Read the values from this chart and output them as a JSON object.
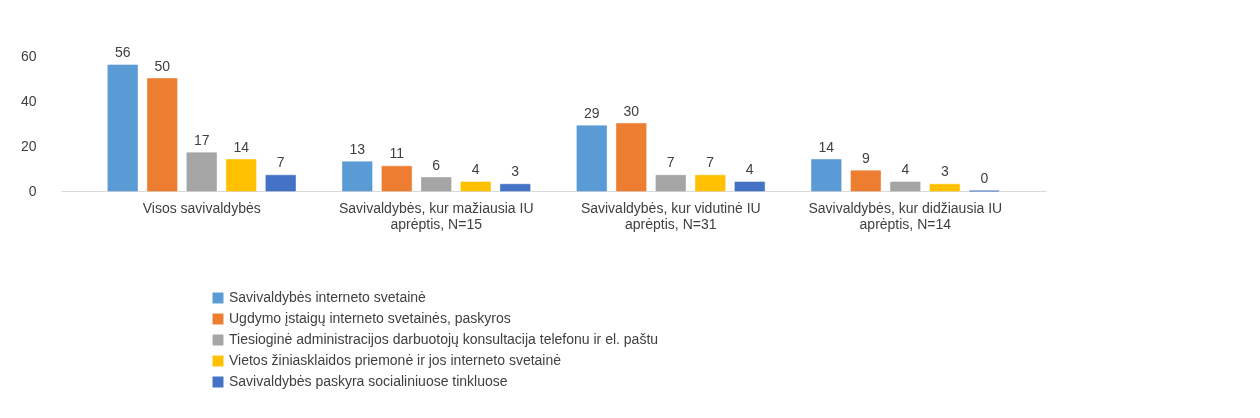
{
  "chart_data": {
    "type": "bar",
    "categories": [
      "Visos savivaldybės",
      "Savivaldybės, kur mažiausia IU aprėptis, N=15",
      "Savivaldybės, kur vidutinė IU aprėptis, N=31",
      "Savivaldybės, kur didžiausia IU aprėptis, N=14"
    ],
    "series": [
      {
        "name": "Savivaldybės interneto svetainė",
        "color": "#5b9bd5",
        "values": [
          56,
          13,
          29,
          14
        ]
      },
      {
        "name": "Ugdymo įstaigų interneto svetainės, paskyros",
        "color": "#ed7d31",
        "values": [
          50,
          11,
          30,
          9
        ]
      },
      {
        "name": "Tiesioginė administracijos darbuotojų konsultacija telefonu ir el. paštu",
        "color": "#a5a5a5",
        "values": [
          17,
          6,
          7,
          4
        ]
      },
      {
        "name": "Vietos žiniasklaidos priemonė ir jos interneto svetainė",
        "color": "#ffc000",
        "values": [
          14,
          4,
          7,
          3
        ]
      },
      {
        "name": "Savivaldybės paskyra socialiniuose tinkluose",
        "color": "#4472c4",
        "values": [
          7,
          3,
          4,
          0
        ]
      }
    ],
    "ylim": [
      0,
      60
    ],
    "yticks": [
      0,
      20,
      40,
      60
    ],
    "grid": false,
    "legend": "bottom",
    "data_labels": true
  }
}
